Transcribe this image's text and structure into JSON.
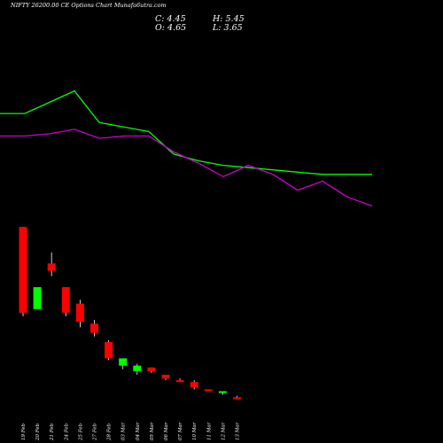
{
  "header": {
    "title": "NIFTY 26200.00 CE Options Chart Munafa6utra.com",
    "close_label": "C: 4.45",
    "high_label": "H: 5.45",
    "open_label": "O: 4.65",
    "low_label": "L: 3.65"
  },
  "colors": {
    "background": "#000000",
    "up": "#00ff00",
    "down": "#ff0000",
    "ma_fast": "#00ff00",
    "ma_slow": "#cc00cc",
    "text": "#ffffff"
  },
  "chart_data": {
    "type": "candlestick",
    "categories": [
      "19 Feb",
      "20 Feb",
      "21 Feb",
      "24 Feb",
      "25 Feb",
      "27 Feb",
      "28 Feb",
      "03 Mar",
      "04 Mar",
      "05 Mar",
      "06 Mar",
      "07 Mar",
      "10 Mar",
      "11 Mar",
      "12 Mar",
      "13 Mar"
    ],
    "candles": [
      {
        "open": 98,
        "high": 98,
        "low": 49,
        "close": 51,
        "dir": "down"
      },
      {
        "open": 53,
        "high": 64,
        "low": 53,
        "close": 65,
        "dir": "up"
      },
      {
        "open": 78,
        "high": 84,
        "low": 71,
        "close": 74,
        "dir": "down"
      },
      {
        "open": 65,
        "high": 65,
        "low": 49,
        "close": 51,
        "dir": "down"
      },
      {
        "open": 56,
        "high": 58,
        "low": 43,
        "close": 46,
        "dir": "down"
      },
      {
        "open": 45,
        "high": 47,
        "low": 38,
        "close": 40,
        "dir": "down"
      },
      {
        "open": 35,
        "high": 36,
        "low": 25,
        "close": 26,
        "dir": "down"
      },
      {
        "open": 22,
        "high": 26,
        "low": 20,
        "close": 26,
        "dir": "up"
      },
      {
        "open": 19,
        "high": 23,
        "low": 17,
        "close": 22,
        "dir": "up"
      },
      {
        "open": 21,
        "high": 21,
        "low": 18,
        "close": 19,
        "dir": "down"
      },
      {
        "open": 17,
        "high": 17,
        "low": 14,
        "close": 15,
        "dir": "down"
      },
      {
        "open": 14,
        "high": 15,
        "low": 13,
        "close": 13,
        "dir": "down"
      },
      {
        "open": 13,
        "high": 14,
        "low": 9,
        "close": 10,
        "dir": "down"
      },
      {
        "open": 9,
        "high": 9,
        "low": 8,
        "close": 8,
        "dir": "down"
      },
      {
        "open": 7,
        "high": 8,
        "low": 6,
        "close": 8,
        "dir": "up"
      },
      {
        "open": 4.65,
        "high": 5.45,
        "low": 3.65,
        "close": 4.45,
        "dir": "down"
      }
    ],
    "ma_fast": [
      42,
      42,
      47,
      52,
      38,
      36,
      34,
      24,
      21,
      19,
      18,
      17,
      16,
      15,
      15,
      15
    ],
    "ma_slow": [
      32,
      32,
      33,
      35,
      31,
      32,
      32,
      25,
      20,
      14,
      19,
      15,
      8,
      12,
      5,
      1
    ],
    "ylim": [
      0,
      100
    ]
  }
}
